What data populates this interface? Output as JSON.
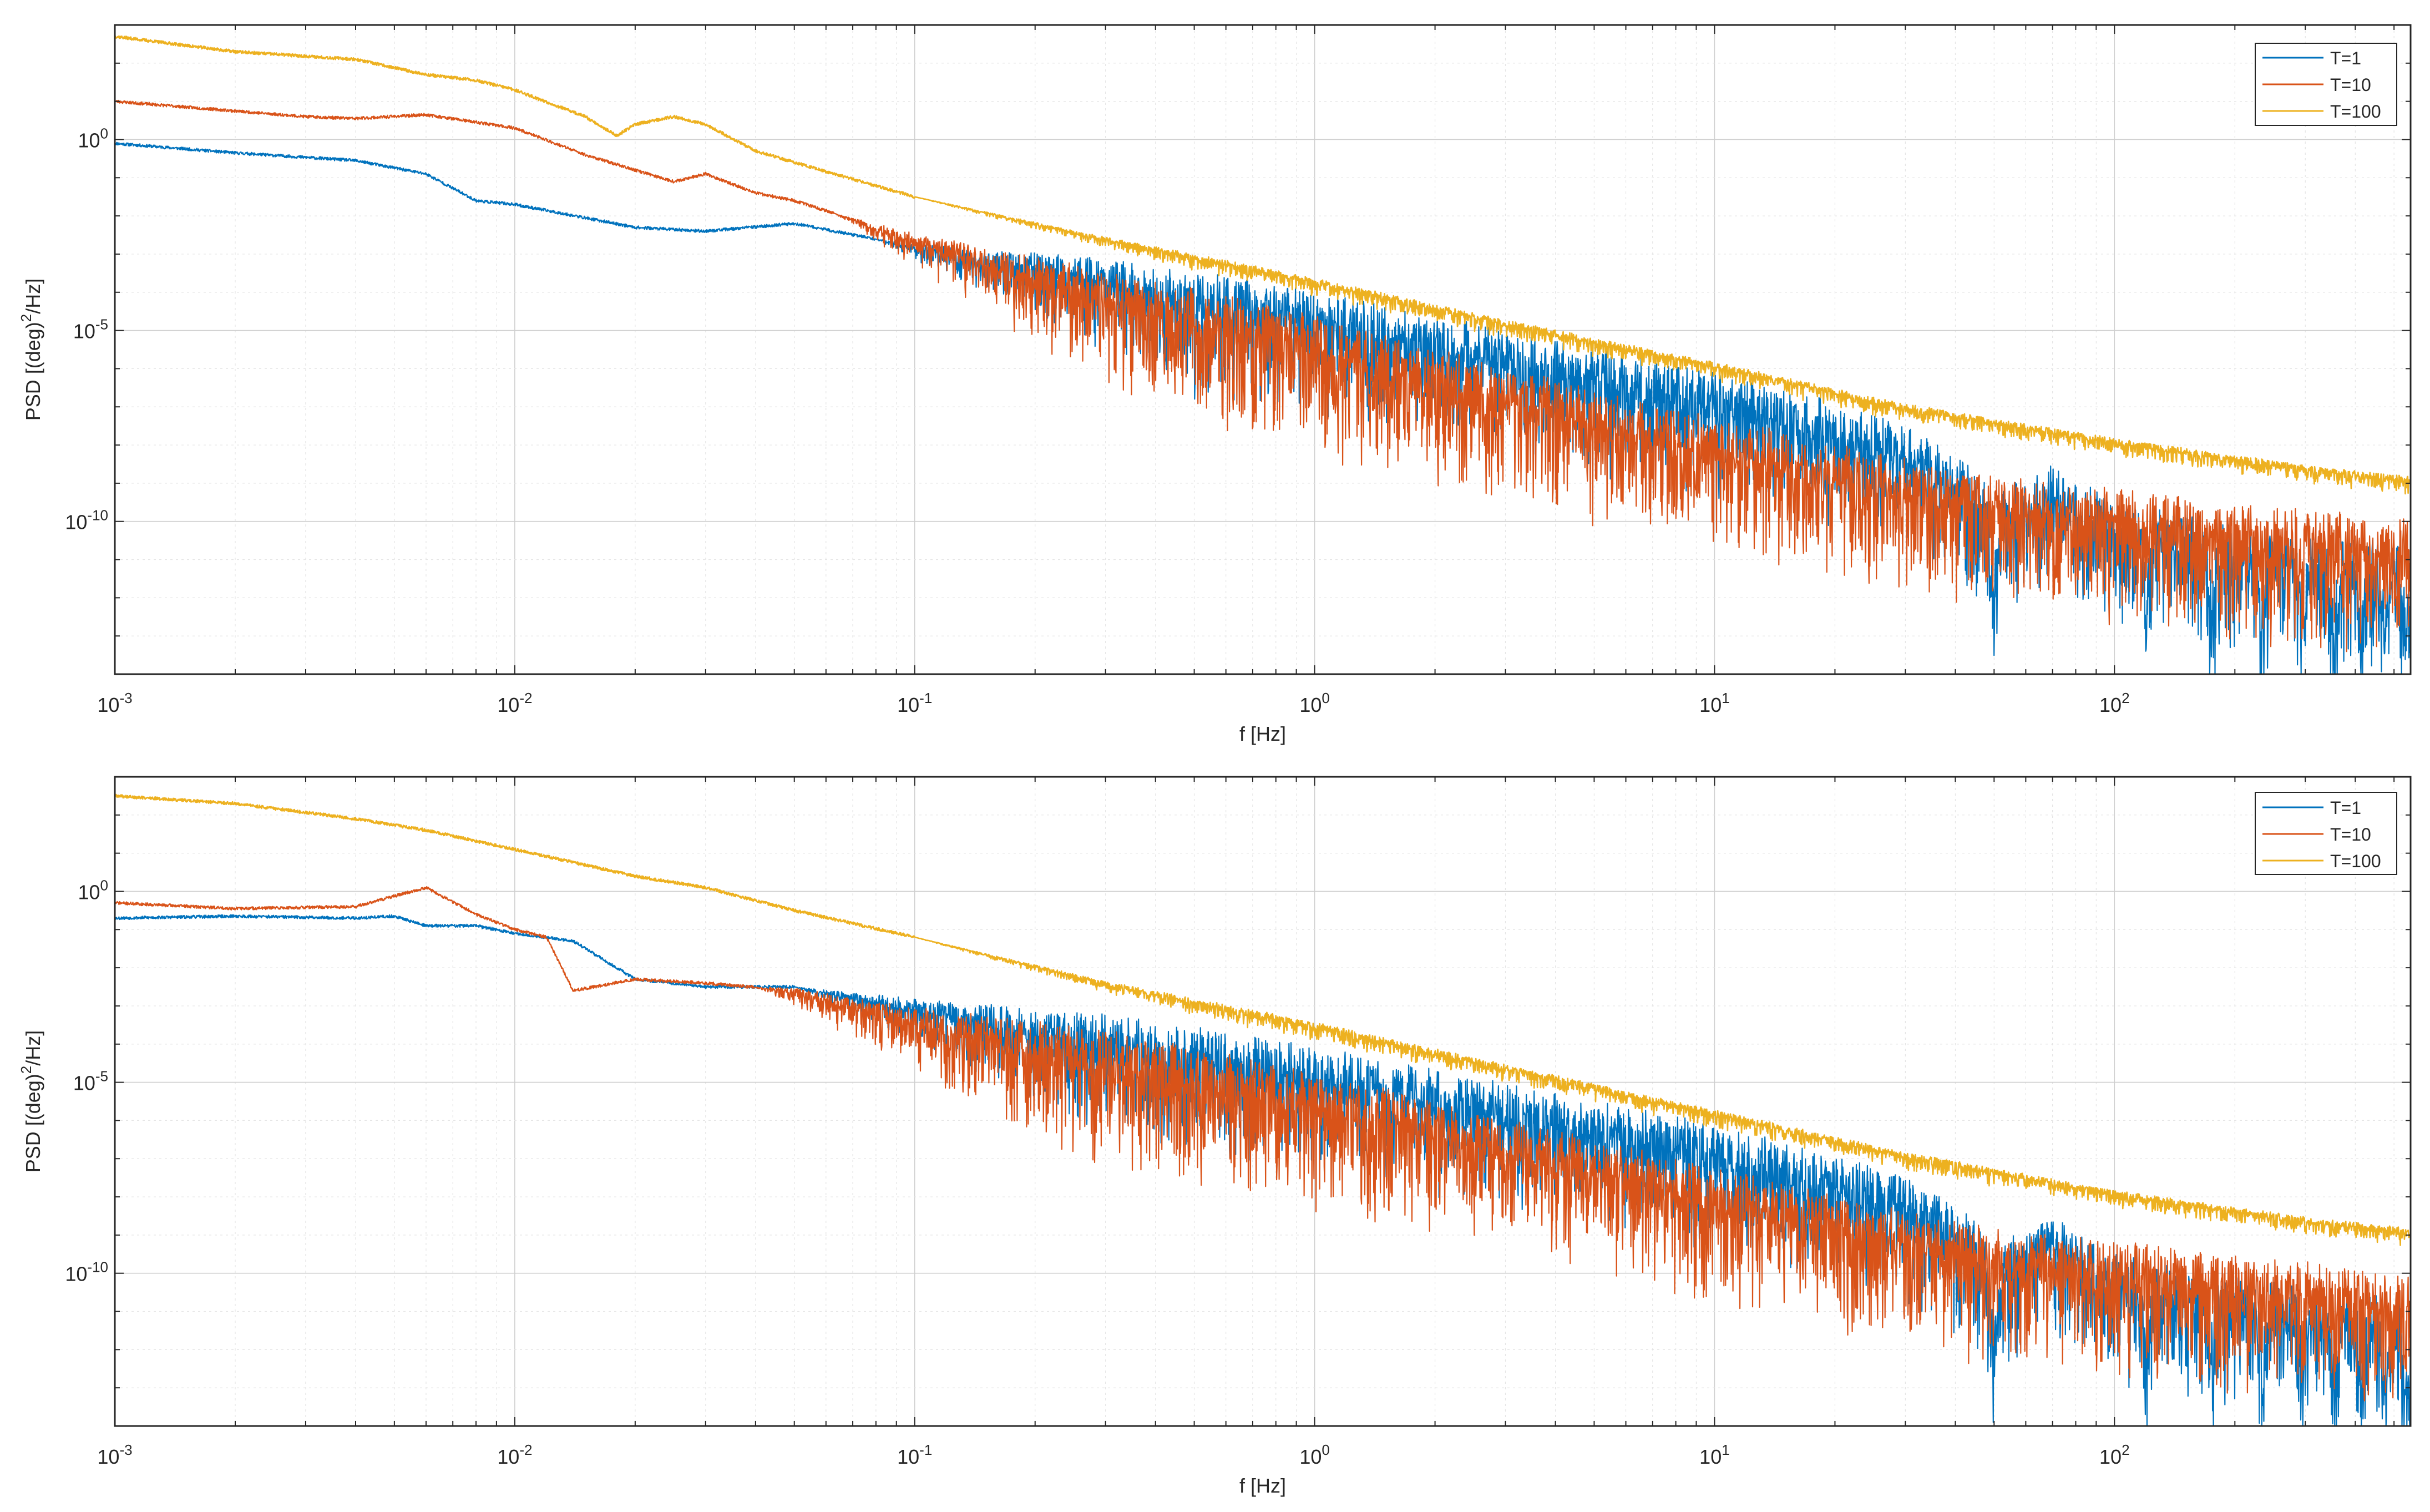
{
  "chart_data": [
    {
      "type": "line",
      "panel": "top",
      "title": "",
      "xlabel": "f [Hz]",
      "ylabel_base": "PSD [(deg)",
      "ylabel_sup": "2",
      "ylabel_tail": "/Hz]",
      "xscale": "log",
      "yscale": "log",
      "xlim": [
        0.001,
        550
      ],
      "ylim_exp": [
        -14,
        3
      ],
      "grid": true,
      "legend_position": "top-right",
      "x_ticks": [
        {
          "exp": -3,
          "label_base": "10",
          "label_exp": "-3"
        },
        {
          "exp": -2,
          "label_base": "10",
          "label_exp": "-2"
        },
        {
          "exp": -1,
          "label_base": "10",
          "label_exp": "-1"
        },
        {
          "exp": 0,
          "label_base": "10",
          "label_exp": "0"
        },
        {
          "exp": 1,
          "label_base": "10",
          "label_exp": "1"
        },
        {
          "exp": 2,
          "label_base": "10",
          "label_exp": "2"
        }
      ],
      "y_ticks": [
        {
          "exp": 0,
          "label_base": "10",
          "label_exp": "0"
        },
        {
          "exp": -5,
          "label_base": "10",
          "label_exp": "-5"
        },
        {
          "exp": -10,
          "label_base": "10",
          "label_exp": "-10"
        }
      ],
      "series": [
        {
          "name": "T=1",
          "color": "#0072BD",
          "seed": 11,
          "noise_start": -1.1,
          "noise_amp": 2.4,
          "nodes": [
            [
              0.001,
              -0.1
            ],
            [
              0.002,
              -0.35
            ],
            [
              0.004,
              -0.55
            ],
            [
              0.006,
              -0.9
            ],
            [
              0.008,
              -1.6
            ],
            [
              0.01,
              -1.7
            ],
            [
              0.02,
              -2.3
            ],
            [
              0.03,
              -2.4
            ],
            [
              0.05,
              -2.2
            ],
            [
              0.1,
              -2.8
            ],
            [
              0.3,
              -3.5
            ],
            [
              1,
              -4.5
            ],
            [
              3,
              -5.5
            ],
            [
              10,
              -6.6
            ],
            [
              20,
              -7.4
            ],
            [
              30,
              -8.0
            ],
            [
              45,
              -9.1
            ],
            [
              50,
              -9.8
            ],
            [
              70,
              -9.0
            ],
            [
              100,
              -10.0
            ],
            [
              200,
              -10.6
            ],
            [
              550,
              -11.0
            ]
          ],
          "dips": [
            [
              50,
              2.8
            ],
            [
              120,
              2.2
            ],
            [
              175,
              2.2
            ],
            [
              235,
              2.2
            ],
            [
              295,
              2.2
            ],
            [
              355,
              2.2
            ],
            [
              415,
              2.2
            ],
            [
              475,
              2.2
            ],
            [
              535,
              2.2
            ]
          ]
        },
        {
          "name": "T=10",
          "color": "#D95319",
          "seed": 23,
          "noise_start": -1.2,
          "noise_amp": 2.6,
          "nodes": [
            [
              0.001,
              1.0
            ],
            [
              0.003,
              0.6
            ],
            [
              0.004,
              0.55
            ],
            [
              0.006,
              0.65
            ],
            [
              0.01,
              0.3
            ],
            [
              0.015,
              -0.4
            ],
            [
              0.02,
              -0.8
            ],
            [
              0.025,
              -1.1
            ],
            [
              0.03,
              -0.9
            ],
            [
              0.04,
              -1.4
            ],
            [
              0.05,
              -1.6
            ],
            [
              0.1,
              -2.6
            ],
            [
              0.3,
              -3.9
            ],
            [
              1,
              -5.2
            ],
            [
              3,
              -6.5
            ],
            [
              10,
              -7.8
            ],
            [
              30,
              -8.9
            ],
            [
              50,
              -9.4
            ],
            [
              100,
              -9.7
            ],
            [
              200,
              -10.1
            ],
            [
              550,
              -10.5
            ]
          ],
          "dips": []
        },
        {
          "name": "T=100",
          "color": "#EDB120",
          "seed": 37,
          "noise_start": -1.0,
          "noise_amp": 0.35,
          "nodes": [
            [
              0.001,
              2.7
            ],
            [
              0.002,
              2.3
            ],
            [
              0.004,
              2.1
            ],
            [
              0.006,
              1.7
            ],
            [
              0.008,
              1.55
            ],
            [
              0.01,
              1.3
            ],
            [
              0.015,
              0.6
            ],
            [
              0.018,
              0.1
            ],
            [
              0.02,
              0.4
            ],
            [
              0.025,
              0.6
            ],
            [
              0.03,
              0.4
            ],
            [
              0.04,
              -0.3
            ],
            [
              0.05,
              -0.6
            ],
            [
              0.1,
              -1.5
            ],
            [
              0.3,
              -2.6
            ],
            [
              1,
              -3.7
            ],
            [
              3,
              -4.8
            ],
            [
              10,
              -5.9
            ],
            [
              30,
              -7.0
            ],
            [
              100,
              -7.9
            ],
            [
              300,
              -8.6
            ],
            [
              550,
              -8.9
            ]
          ],
          "dips": []
        }
      ]
    },
    {
      "type": "line",
      "panel": "bottom",
      "title": "",
      "xlabel": "f [Hz]",
      "ylabel_base": "PSD [(deg)",
      "ylabel_sup": "2",
      "ylabel_tail": "/Hz]",
      "xscale": "log",
      "yscale": "log",
      "xlim": [
        0.001,
        550
      ],
      "ylim_exp": [
        -14,
        3
      ],
      "grid": true,
      "legend_position": "top-right",
      "x_ticks": [
        {
          "exp": -3,
          "label_base": "10",
          "label_exp": "-3"
        },
        {
          "exp": -2,
          "label_base": "10",
          "label_exp": "-2"
        },
        {
          "exp": -1,
          "label_base": "10",
          "label_exp": "-1"
        },
        {
          "exp": 0,
          "label_base": "10",
          "label_exp": "0"
        },
        {
          "exp": 1,
          "label_base": "10",
          "label_exp": "1"
        },
        {
          "exp": 2,
          "label_base": "10",
          "label_exp": "2"
        }
      ],
      "y_ticks": [
        {
          "exp": 0,
          "label_base": "10",
          "label_exp": "0"
        },
        {
          "exp": -5,
          "label_base": "10",
          "label_exp": "-5"
        },
        {
          "exp": -10,
          "label_base": "10",
          "label_exp": "-10"
        }
      ],
      "series": [
        {
          "name": "T=1",
          "color": "#0072BD",
          "seed": 53,
          "noise_start": -1.3,
          "noise_amp": 2.4,
          "nodes": [
            [
              0.001,
              -0.7
            ],
            [
              0.002,
              -0.65
            ],
            [
              0.004,
              -0.7
            ],
            [
              0.005,
              -0.65
            ],
            [
              0.006,
              -0.9
            ],
            [
              0.008,
              -0.9
            ],
            [
              0.01,
              -1.1
            ],
            [
              0.014,
              -1.3
            ],
            [
              0.02,
              -2.3
            ],
            [
              0.03,
              -2.5
            ],
            [
              0.05,
              -2.5
            ],
            [
              0.1,
              -3.0
            ],
            [
              0.3,
              -3.7
            ],
            [
              1,
              -4.6
            ],
            [
              3,
              -5.5
            ],
            [
              10,
              -6.6
            ],
            [
              20,
              -7.4
            ],
            [
              30,
              -8.0
            ],
            [
              45,
              -9.1
            ],
            [
              50,
              -9.8
            ],
            [
              70,
              -9.0
            ],
            [
              100,
              -10.0
            ],
            [
              200,
              -10.6
            ],
            [
              550,
              -11.0
            ]
          ],
          "dips": [
            [
              50,
              2.8
            ],
            [
              120,
              2.2
            ],
            [
              175,
              2.2
            ],
            [
              235,
              2.2
            ],
            [
              295,
              2.2
            ],
            [
              355,
              2.2
            ],
            [
              415,
              2.2
            ],
            [
              475,
              2.2
            ],
            [
              535,
              2.2
            ]
          ]
        },
        {
          "name": "T=10",
          "color": "#D95319",
          "seed": 71,
          "noise_start": -1.4,
          "noise_amp": 2.6,
          "nodes": [
            [
              0.001,
              -0.3
            ],
            [
              0.002,
              -0.45
            ],
            [
              0.004,
              -0.4
            ],
            [
              0.006,
              0.1
            ],
            [
              0.008,
              -0.6
            ],
            [
              0.01,
              -1.0
            ],
            [
              0.012,
              -1.2
            ],
            [
              0.014,
              -2.6
            ],
            [
              0.02,
              -2.3
            ],
            [
              0.03,
              -2.4
            ],
            [
              0.05,
              -2.6
            ],
            [
              0.1,
              -3.3
            ],
            [
              0.3,
              -4.2
            ],
            [
              1,
              -5.3
            ],
            [
              3,
              -6.5
            ],
            [
              10,
              -7.8
            ],
            [
              30,
              -8.9
            ],
            [
              50,
              -9.4
            ],
            [
              100,
              -9.7
            ],
            [
              200,
              -10.1
            ],
            [
              550,
              -10.5
            ]
          ],
          "dips": []
        },
        {
          "name": "T=100",
          "color": "#EDB120",
          "seed": 89,
          "noise_start": -1.0,
          "noise_amp": 0.35,
          "nodes": [
            [
              0.001,
              2.5
            ],
            [
              0.002,
              2.3
            ],
            [
              0.004,
              1.9
            ],
            [
              0.006,
              1.6
            ],
            [
              0.01,
              1.1
            ],
            [
              0.02,
              0.4
            ],
            [
              0.03,
              0.1
            ],
            [
              0.05,
              -0.5
            ],
            [
              0.1,
              -1.2
            ],
            [
              0.3,
              -2.4
            ],
            [
              1,
              -3.5
            ],
            [
              3,
              -4.6
            ],
            [
              10,
              -5.8
            ],
            [
              30,
              -6.9
            ],
            [
              100,
              -7.9
            ],
            [
              300,
              -8.6
            ],
            [
              550,
              -8.9
            ]
          ],
          "dips": []
        }
      ]
    }
  ]
}
